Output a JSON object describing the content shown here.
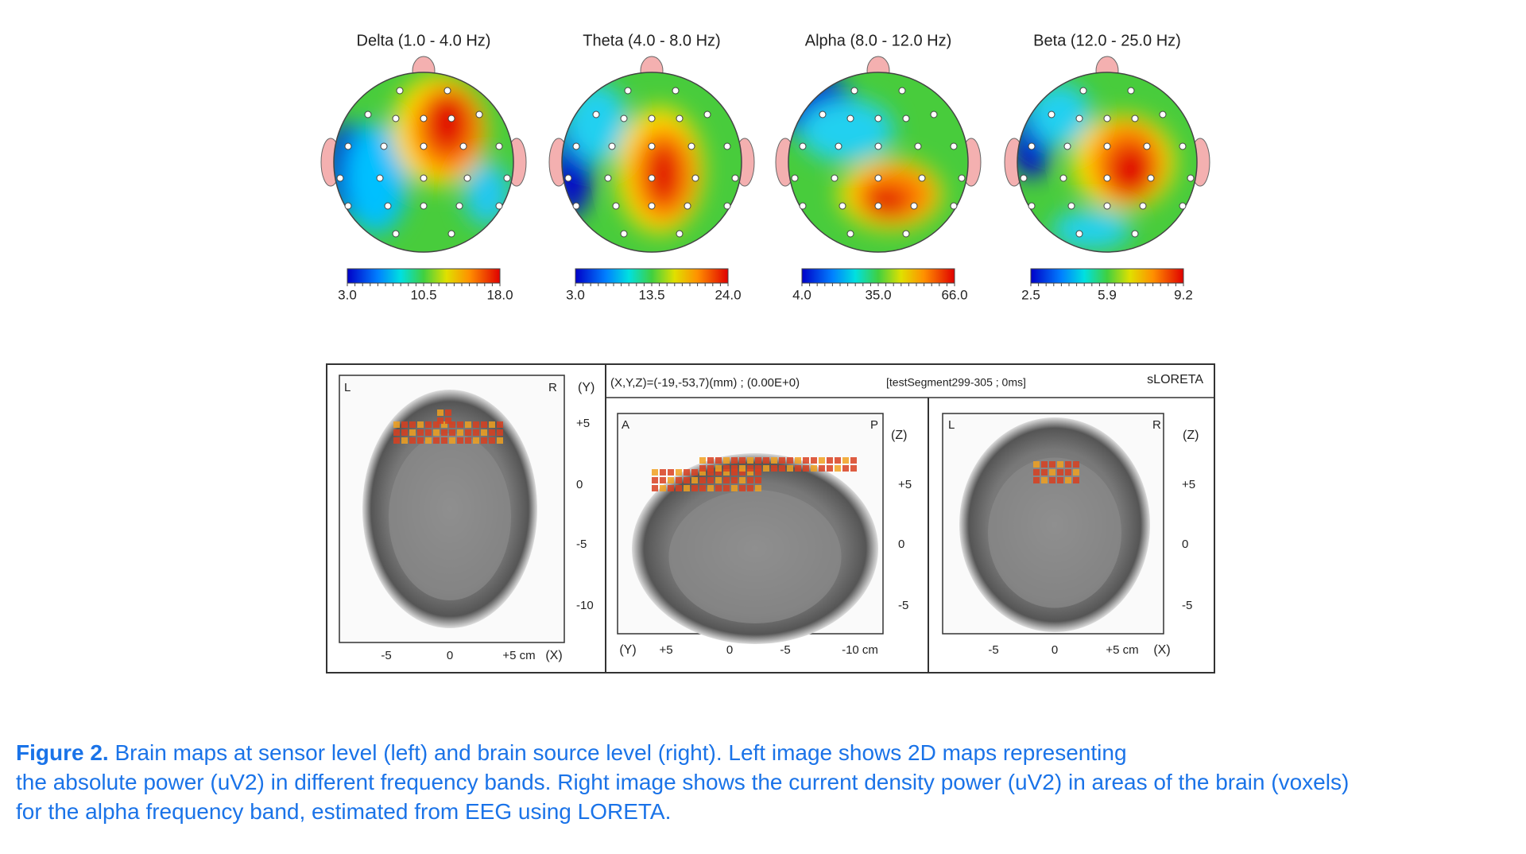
{
  "topomaps": [
    {
      "title": "Delta (1.0 - 4.0 Hz)",
      "scale": [
        "3.0",
        "10.5",
        "18.0"
      ]
    },
    {
      "title": "Theta (4.0 - 8.0 Hz)",
      "scale": [
        "3.0",
        "13.5",
        "24.0"
      ]
    },
    {
      "title": "Alpha (8.0 - 12.0 Hz)",
      "scale": [
        "4.0",
        "35.0",
        "66.0"
      ]
    },
    {
      "title": "Beta (12.0 - 25.0 Hz)",
      "scale": [
        "2.5",
        "5.9",
        "9.2"
      ]
    }
  ],
  "loreta": {
    "coords": "(X,Y,Z)=(-19,-53,7)(mm) ; (0.00E+0)",
    "segment": "[testSegment299-305 ; 0ms]",
    "method": "sLORETA",
    "panels": [
      {
        "corner_left": "L",
        "corner_right": "R",
        "axis_right_label": "(Y)",
        "axis_right_ticks": [
          "+5",
          "0",
          "-5",
          "-10"
        ],
        "axis_bottom_ticks": [
          "-5",
          "0",
          "+5 cm"
        ],
        "axis_bottom_label": "(X)"
      },
      {
        "corner_left": "A",
        "corner_right": "P",
        "axis_right_label": "(Z)",
        "axis_right_ticks": [
          "+5",
          "0",
          "-5"
        ],
        "axis_bottom_label": "(Y)",
        "axis_bottom_ticks": [
          "+5",
          "0",
          "-5",
          "-10 cm"
        ]
      },
      {
        "corner_left": "L",
        "corner_right": "R",
        "axis_right_label": "(Z)",
        "axis_right_ticks": [
          "+5",
          "0",
          "-5"
        ],
        "axis_bottom_ticks": [
          "-5",
          "0",
          "+5 cm"
        ],
        "axis_bottom_label": "(X)"
      }
    ]
  },
  "caption": {
    "label": "Figure 2.",
    "lines": [
      "Brain maps at sensor level (left) and brain source level (right). Left image shows 2D maps representing",
      "the absolute power (uV2) in different frequency bands. Right image shows the current density power (uV2) in areas of the brain (voxels)",
      "for the alpha frequency band, estimated from EEG using LORETA."
    ]
  }
}
